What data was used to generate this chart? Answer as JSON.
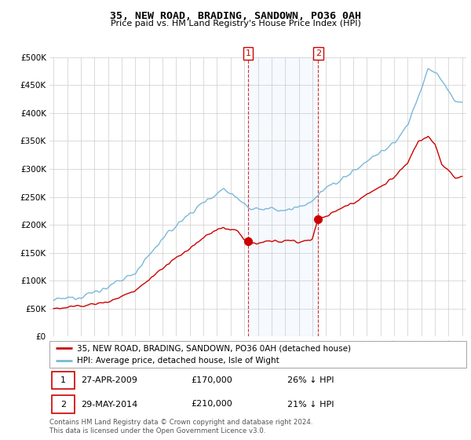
{
  "title": "35, NEW ROAD, BRADING, SANDOWN, PO36 0AH",
  "subtitle": "Price paid vs. HM Land Registry's House Price Index (HPI)",
  "hpi_color": "#7ab8d9",
  "price_color": "#cc0000",
  "purchase1_year": 2009.29,
  "purchase1_price": 170000,
  "purchase2_year": 2014.42,
  "purchase2_price": 210000,
  "legend_entries": [
    "35, NEW ROAD, BRADING, SANDOWN, PO36 0AH (detached house)",
    "HPI: Average price, detached house, Isle of Wight"
  ],
  "table_rows": [
    [
      "1",
      "27-APR-2009",
      "£170,000",
      "26% ↓ HPI"
    ],
    [
      "2",
      "29-MAY-2014",
      "£210,000",
      "21% ↓ HPI"
    ]
  ],
  "footer": "Contains HM Land Registry data © Crown copyright and database right 2024.\nThis data is licensed under the Open Government Licence v3.0.",
  "ylim": [
    0,
    500000
  ],
  "yticks": [
    0,
    50000,
    100000,
    150000,
    200000,
    250000,
    300000,
    350000,
    400000,
    450000,
    500000
  ],
  "xlim_start": 1995,
  "xlim_end": 2025
}
